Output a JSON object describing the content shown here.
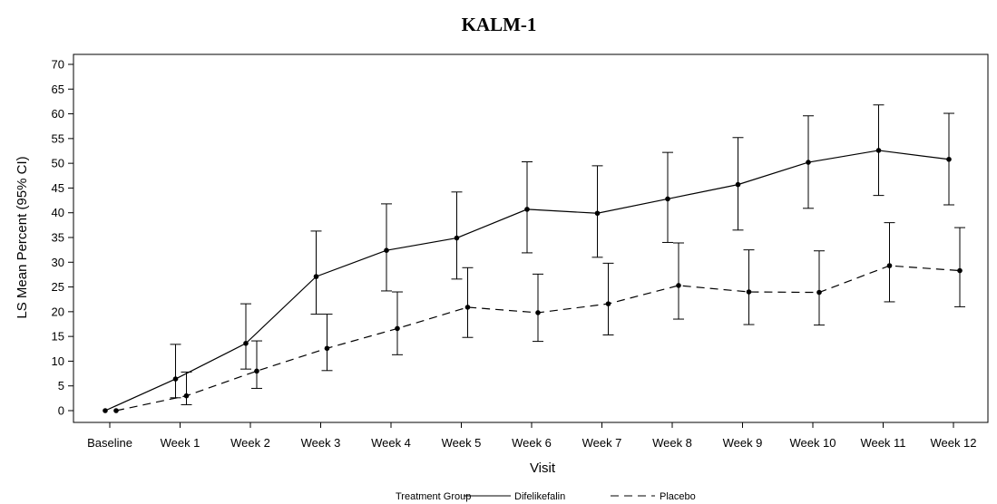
{
  "chart_data": {
    "type": "line",
    "title": "KALM-1",
    "xlabel": "Visit",
    "ylabel": "LS Mean Percent (95% CI)",
    "ylim": [
      0,
      70
    ],
    "yticks": [
      0,
      5,
      10,
      15,
      20,
      25,
      30,
      35,
      40,
      45,
      50,
      55,
      60,
      65,
      70
    ],
    "categories": [
      "Baseline",
      "Week 1",
      "Week 2",
      "Week 3",
      "Week 4",
      "Week 5",
      "Week 6",
      "Week 7",
      "Week 8",
      "Week 9",
      "Week 10",
      "Week 11",
      "Week 12"
    ],
    "series": [
      {
        "name": "Difelikefalin",
        "line_style": "solid",
        "color": "#000000",
        "values": [
          0,
          6.4,
          13.6,
          27.1,
          32.4,
          34.9,
          40.7,
          39.9,
          42.8,
          45.7,
          50.2,
          52.6,
          50.8
        ],
        "lower": [
          0,
          2.6,
          8.4,
          19.5,
          24.2,
          26.6,
          31.9,
          31.0,
          34.0,
          36.5,
          40.9,
          43.5,
          41.6
        ],
        "upper": [
          0,
          13.4,
          21.6,
          36.3,
          41.8,
          44.2,
          50.3,
          49.5,
          52.2,
          55.2,
          59.6,
          61.8,
          60.1
        ]
      },
      {
        "name": "Placebo",
        "line_style": "dashed",
        "color": "#000000",
        "values": [
          0,
          3.0,
          8.0,
          12.6,
          16.6,
          20.9,
          19.8,
          21.6,
          25.3,
          24.0,
          23.9,
          29.3,
          28.3
        ],
        "lower": [
          0,
          1.2,
          4.5,
          8.1,
          11.3,
          14.8,
          14.0,
          15.3,
          18.5,
          17.4,
          17.3,
          22.0,
          21.0
        ],
        "upper": [
          0,
          7.8,
          14.1,
          19.5,
          24.0,
          28.9,
          27.6,
          29.8,
          33.9,
          32.5,
          32.3,
          38.0,
          37.0
        ]
      }
    ],
    "legend": {
      "title": "Treatment Group",
      "position": "bottom"
    },
    "grid": false
  }
}
